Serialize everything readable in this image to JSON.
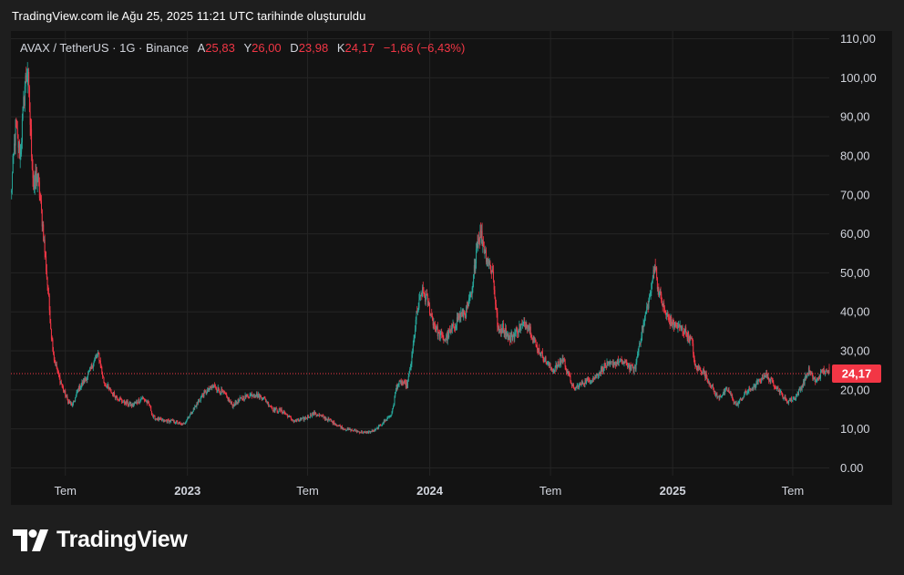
{
  "caption": "TradingView.com ile Ağu 25, 2025 11:21 UTC tarihinde oluşturuldu",
  "legend": {
    "symbol": "AVAX / TetherUS · 1G · Binance",
    "open_label": "A",
    "open": "25,83",
    "high_label": "Y",
    "high": "26,00",
    "low_label": "D",
    "low": "23,98",
    "close_label": "K",
    "close": "24,17",
    "change": "−1,66 (−6,43%)"
  },
  "brand": "TradingView",
  "colors": {
    "up": "#26a69a",
    "down": "#f23645",
    "price_line": "#f23645",
    "background": "#131313",
    "grid": "#242424"
  },
  "chart_data": {
    "type": "candlestick",
    "title": "",
    "xlabel": "",
    "ylabel": "",
    "x_ticks": [
      "Tem",
      "2023",
      "Tem",
      "2024",
      "Tem",
      "2025",
      "Tem"
    ],
    "x_tick_dates": [
      "2022-07-01",
      "2023-01-01",
      "2023-07-01",
      "2024-01-01",
      "2024-07-01",
      "2025-01-01",
      "2025-07-01"
    ],
    "x_range": [
      "2022-04-10",
      "2025-08-25"
    ],
    "y_ticks": [
      "0.00",
      "10,00",
      "20,00",
      "30,00",
      "40,00",
      "50,00",
      "60,00",
      "70,00",
      "80,00",
      "90,00",
      "100,00",
      "110,00"
    ],
    "y_tick_values": [
      0,
      10,
      20,
      30,
      40,
      50,
      60,
      70,
      80,
      90,
      100,
      110
    ],
    "ylim": [
      -2,
      112
    ],
    "last_price": 24.17,
    "last_price_label": "24,17",
    "grid": true,
    "series": [
      {
        "approx_close_path": [
          [
            "2022-04-10",
            70
          ],
          [
            "2022-04-17",
            87
          ],
          [
            "2022-04-24",
            80
          ],
          [
            "2022-05-01",
            98
          ],
          [
            "2022-05-05",
            102
          ],
          [
            "2022-05-10",
            85
          ],
          [
            "2022-05-14",
            72
          ],
          [
            "2022-05-20",
            75
          ],
          [
            "2022-05-28",
            62
          ],
          [
            "2022-06-05",
            45
          ],
          [
            "2022-06-10",
            34
          ],
          [
            "2022-06-14",
            28
          ],
          [
            "2022-06-20",
            24
          ],
          [
            "2022-06-28",
            20
          ],
          [
            "2022-07-05",
            17
          ],
          [
            "2022-07-12",
            16
          ],
          [
            "2022-07-20",
            20
          ],
          [
            "2022-07-28",
            22
          ],
          [
            "2022-08-05",
            24
          ],
          [
            "2022-08-12",
            27
          ],
          [
            "2022-08-20",
            29
          ],
          [
            "2022-08-28",
            22
          ],
          [
            "2022-09-10",
            19
          ],
          [
            "2022-09-25",
            17
          ],
          [
            "2022-10-10",
            16
          ],
          [
            "2022-10-25",
            18
          ],
          [
            "2022-11-05",
            16
          ],
          [
            "2022-11-10",
            13
          ],
          [
            "2022-11-25",
            12
          ],
          [
            "2022-12-10",
            12
          ],
          [
            "2022-12-25",
            11
          ],
          [
            "2023-01-10",
            15
          ],
          [
            "2023-01-25",
            19
          ],
          [
            "2023-02-10",
            21
          ],
          [
            "2023-02-25",
            19
          ],
          [
            "2023-03-10",
            16
          ],
          [
            "2023-03-25",
            18
          ],
          [
            "2023-04-10",
            19
          ],
          [
            "2023-04-25",
            18
          ],
          [
            "2023-05-10",
            15
          ],
          [
            "2023-05-25",
            14.5
          ],
          [
            "2023-06-10",
            12
          ],
          [
            "2023-06-25",
            12.5
          ],
          [
            "2023-07-10",
            14
          ],
          [
            "2023-07-25",
            13
          ],
          [
            "2023-08-10",
            11.5
          ],
          [
            "2023-08-25",
            10
          ],
          [
            "2023-09-10",
            9.5
          ],
          [
            "2023-09-25",
            9
          ],
          [
            "2023-10-10",
            9.5
          ],
          [
            "2023-10-25",
            12
          ],
          [
            "2023-11-05",
            14
          ],
          [
            "2023-11-12",
            21
          ],
          [
            "2023-11-20",
            22
          ],
          [
            "2023-11-28",
            21
          ],
          [
            "2023-12-05",
            28
          ],
          [
            "2023-12-12",
            39
          ],
          [
            "2023-12-20",
            45
          ],
          [
            "2023-12-28",
            43
          ],
          [
            "2024-01-05",
            38
          ],
          [
            "2024-01-15",
            34
          ],
          [
            "2024-01-25",
            33
          ],
          [
            "2024-02-05",
            36
          ],
          [
            "2024-02-15",
            39
          ],
          [
            "2024-02-25",
            40
          ],
          [
            "2024-03-05",
            45
          ],
          [
            "2024-03-12",
            58
          ],
          [
            "2024-03-18",
            60
          ],
          [
            "2024-03-25",
            55
          ],
          [
            "2024-04-05",
            50
          ],
          [
            "2024-04-13",
            35
          ],
          [
            "2024-04-20",
            36
          ],
          [
            "2024-05-01",
            33
          ],
          [
            "2024-05-15",
            36
          ],
          [
            "2024-05-28",
            37
          ],
          [
            "2024-06-10",
            31
          ],
          [
            "2024-06-25",
            27
          ],
          [
            "2024-07-05",
            25
          ],
          [
            "2024-07-20",
            28
          ],
          [
            "2024-08-05",
            20
          ],
          [
            "2024-08-20",
            22
          ],
          [
            "2024-09-05",
            23
          ],
          [
            "2024-09-20",
            26
          ],
          [
            "2024-10-05",
            27
          ],
          [
            "2024-10-20",
            27
          ],
          [
            "2024-11-05",
            25
          ],
          [
            "2024-11-12",
            32
          ],
          [
            "2024-11-22",
            40
          ],
          [
            "2024-11-30",
            46
          ],
          [
            "2024-12-05",
            53
          ],
          [
            "2024-12-10",
            46
          ],
          [
            "2024-12-20",
            40
          ],
          [
            "2024-12-31",
            37
          ],
          [
            "2025-01-10",
            36
          ],
          [
            "2025-01-20",
            35
          ],
          [
            "2025-01-31",
            32
          ],
          [
            "2025-02-03",
            26
          ],
          [
            "2025-02-15",
            25
          ],
          [
            "2025-02-28",
            21
          ],
          [
            "2025-03-10",
            18
          ],
          [
            "2025-03-25",
            20
          ],
          [
            "2025-04-07",
            16
          ],
          [
            "2025-04-20",
            19
          ],
          [
            "2025-05-05",
            21
          ],
          [
            "2025-05-20",
            24
          ],
          [
            "2025-06-05",
            21
          ],
          [
            "2025-06-22",
            17
          ],
          [
            "2025-07-05",
            18
          ],
          [
            "2025-07-15",
            21
          ],
          [
            "2025-07-25",
            25
          ],
          [
            "2025-08-05",
            22
          ],
          [
            "2025-08-15",
            25
          ],
          [
            "2025-08-25",
            24.17
          ]
        ]
      }
    ]
  }
}
